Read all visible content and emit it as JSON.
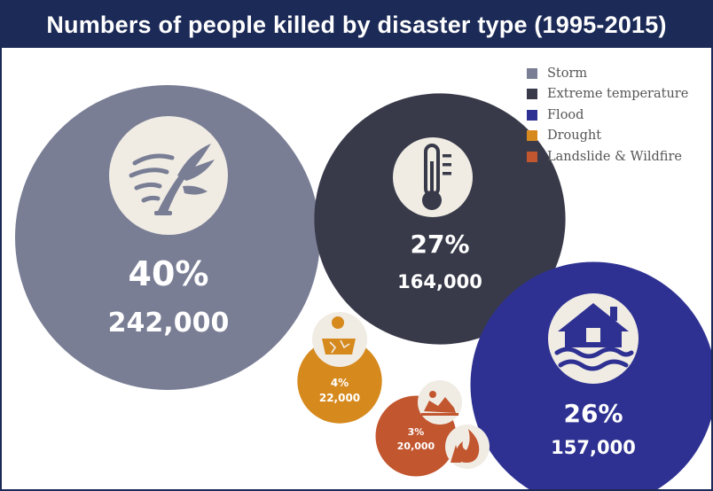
{
  "title": "Numbers of people killed by disaster type (1995-2015)",
  "chart_data": {
    "type": "bubble",
    "title": "Numbers of people killed by disaster type (1995-2015)",
    "legend_position": "top-right",
    "series": [
      {
        "name": "Storm",
        "percent_label": "40%",
        "value_label": "242,000",
        "percent": 40,
        "value": 242000,
        "color": "#797e95",
        "icon": "storm-icon"
      },
      {
        "name": "Extreme temperature",
        "percent_label": "27%",
        "value_label": "164,000",
        "percent": 27,
        "value": 164000,
        "color": "#383a4a",
        "icon": "thermometer-icon"
      },
      {
        "name": "Flood",
        "percent_label": "26%",
        "value_label": "157,000",
        "percent": 26,
        "value": 157000,
        "color": "#2e3192",
        "icon": "house-flood-icon"
      },
      {
        "name": "Drought",
        "percent_label": "4%",
        "value_label": "22,000",
        "percent": 4,
        "value": 22000,
        "color": "#d68a1e",
        "icon": "drought-icon"
      },
      {
        "name": "Landslide & Wildfire",
        "percent_label": "3%",
        "value_label": "20,000",
        "percent": 3,
        "value": 20000,
        "color": "#c2562f",
        "icon": "landslide-wildfire-icon"
      }
    ]
  }
}
